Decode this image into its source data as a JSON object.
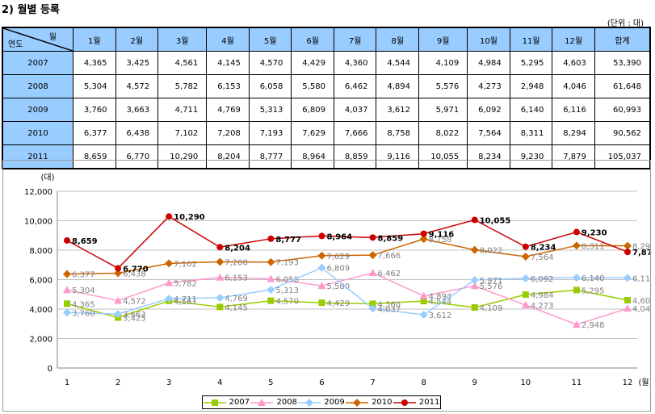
{
  "title": "2) 월별 등록",
  "unit": "(단위 : 대)",
  "table": {
    "corner_month": "월",
    "corner_year": "연도",
    "headers": [
      "1월",
      "2월",
      "3월",
      "4월",
      "5월",
      "6월",
      "7월",
      "8월",
      "9월",
      "10월",
      "11월",
      "12월",
      "합계"
    ],
    "rows": [
      {
        "year": "2007",
        "cells": [
          "4,365",
          "3,425",
          "4,561",
          "4,145",
          "4,570",
          "4,429",
          "4,360",
          "4,544",
          "4,109",
          "4,984",
          "5,295",
          "4,603",
          "53,390"
        ]
      },
      {
        "year": "2008",
        "cells": [
          "5,304",
          "4,572",
          "5,782",
          "6,153",
          "6,058",
          "5,580",
          "6,462",
          "4,894",
          "5,576",
          "4,273",
          "2,948",
          "4,046",
          "61,648"
        ]
      },
      {
        "year": "2009",
        "cells": [
          "3,760",
          "3,663",
          "4,711",
          "4,769",
          "5,313",
          "6,809",
          "4,037",
          "3,612",
          "5,971",
          "6,092",
          "6,140",
          "6,116",
          "60,993"
        ]
      },
      {
        "year": "2010",
        "cells": [
          "6,377",
          "6,438",
          "7,102",
          "7,208",
          "7,193",
          "7,629",
          "7,666",
          "8,758",
          "8,022",
          "7,564",
          "8,311",
          "8,294",
          "90,562"
        ]
      },
      {
        "year": "2011",
        "cells": [
          "8,659",
          "6,770",
          "10,290",
          "8,204",
          "8,777",
          "8,964",
          "8,859",
          "9,116",
          "10,055",
          "8,234",
          "9,230",
          "7,879",
          "105,037"
        ]
      }
    ]
  },
  "chart_data": {
    "type": "line",
    "ylabel": "(대)",
    "xlabel": "(월)",
    "x": [
      1,
      2,
      3,
      4,
      5,
      6,
      7,
      8,
      9,
      10,
      11,
      12
    ],
    "ylim": [
      0,
      12000
    ],
    "yticks": [
      0,
      2000,
      4000,
      6000,
      8000,
      10000,
      12000
    ],
    "ytick_labels": [
      "0",
      "2,000",
      "4,000",
      "6,000",
      "8,000",
      "10,000",
      "12,000"
    ],
    "grid": "horizontal",
    "legend_position": "bottom",
    "series": [
      {
        "name": "2007",
        "color": "#99cc00",
        "marker": "square",
        "values": [
          4365,
          3425,
          4561,
          4145,
          4570,
          4429,
          4360,
          4544,
          4109,
          4984,
          5295,
          4603
        ]
      },
      {
        "name": "2008",
        "color": "#ff99cc",
        "marker": "triangle",
        "values": [
          5304,
          4572,
          5782,
          6153,
          6058,
          5580,
          6462,
          4894,
          5576,
          4273,
          2948,
          4046
        ]
      },
      {
        "name": "2009",
        "color": "#99ccff",
        "marker": "diamond",
        "values": [
          3760,
          3663,
          4711,
          4769,
          5313,
          6809,
          4037,
          3612,
          5971,
          6092,
          6140,
          6116
        ]
      },
      {
        "name": "2010",
        "color": "#cc6600",
        "marker": "diamond",
        "values": [
          6377,
          6438,
          7102,
          7208,
          7193,
          7629,
          7666,
          8758,
          8022,
          7564,
          8311,
          8294
        ]
      },
      {
        "name": "2011",
        "color": "#cc0000",
        "marker": "circle",
        "values": [
          8659,
          6770,
          10290,
          8204,
          8777,
          8964,
          8859,
          9116,
          10055,
          8234,
          9230,
          7879
        ]
      }
    ]
  }
}
